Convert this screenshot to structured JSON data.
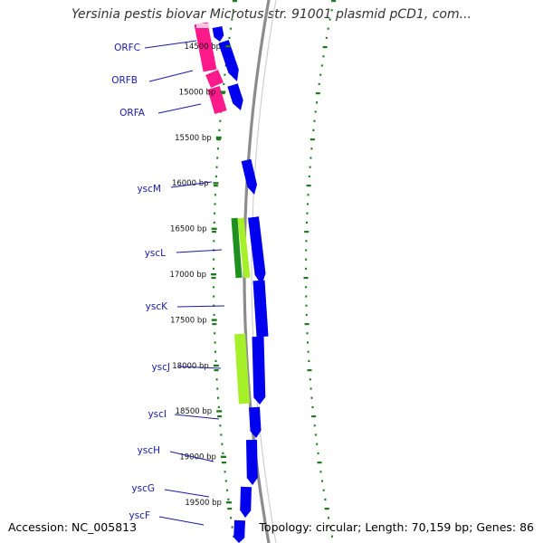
{
  "title": "Yersinia pestis biovar Microtus str. 91001 plasmid pCD1, com...",
  "footer": {
    "accession": "Accession: NC_005813",
    "summary": "Topology: circular; Length: 70,159 bp; Genes: 86"
  },
  "colors": {
    "backbone": "#8c8c8c",
    "tick": "#1f7a1f",
    "gene_forward": "#0000ee",
    "orf_pink": "#ff1a8c",
    "dark_green": "#1f8f1f",
    "light_green": "#a6f02a",
    "label": "#1a1aa8"
  },
  "scale_ticks": [
    {
      "bp": 14500,
      "label": "14500 bp"
    },
    {
      "bp": 15000,
      "label": "15000 bp"
    },
    {
      "bp": 15500,
      "label": "15500 bp"
    },
    {
      "bp": 16000,
      "label": "16000 bp"
    },
    {
      "bp": 16500,
      "label": "16500 bp"
    },
    {
      "bp": 17000,
      "label": "17000 bp"
    },
    {
      "bp": 17500,
      "label": "17500 bp"
    },
    {
      "bp": 18000,
      "label": "18000 bp"
    },
    {
      "bp": 18500,
      "label": "18500 bp"
    },
    {
      "bp": 19000,
      "label": "19000 bp"
    },
    {
      "bp": 19500,
      "label": "19500 bp"
    }
  ],
  "genes": [
    {
      "name": "ORFC"
    },
    {
      "name": "ORFB"
    },
    {
      "name": "ORFA"
    },
    {
      "name": "yscM"
    },
    {
      "name": "yscL"
    },
    {
      "name": "yscK"
    },
    {
      "name": "yscJ"
    },
    {
      "name": "yscI"
    },
    {
      "name": "yscH"
    },
    {
      "name": "yscG"
    },
    {
      "name": "yscF"
    }
  ]
}
